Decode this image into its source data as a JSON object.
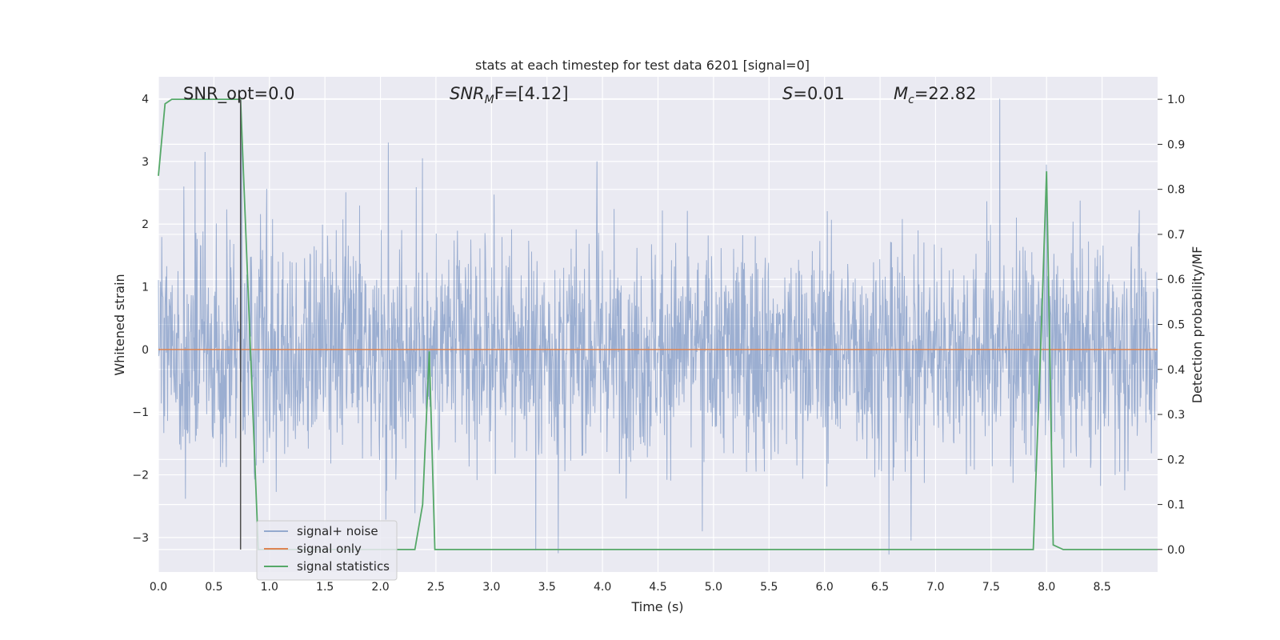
{
  "chart_data": {
    "type": "line",
    "title": "stats at each timestep for test data 6201 [signal=0]",
    "xlabel": "Time (s)",
    "ylabel_left": "Whitened strain",
    "ylabel_right": "Detection probability/MF",
    "xlim": [
      0,
      9.0
    ],
    "ylim_left": [
      -3.55,
      4.35
    ],
    "ylim_right": [
      -0.05,
      1.05
    ],
    "x_ticks": [
      "0.0",
      "0.5",
      "1.0",
      "1.5",
      "2.0",
      "2.5",
      "3.0",
      "3.5",
      "4.0",
      "4.5",
      "5.0",
      "5.5",
      "6.0",
      "6.5",
      "7.0",
      "7.5",
      "8.0",
      "8.5"
    ],
    "y_ticks_left": [
      "4",
      "3",
      "2",
      "1",
      "0",
      "−1",
      "−2",
      "−3"
    ],
    "y_ticks_right": [
      "1.0",
      "0.9",
      "0.8",
      "0.7",
      "0.6",
      "0.5",
      "0.4",
      "0.3",
      "0.2",
      "0.1",
      "0.0"
    ],
    "grid": true,
    "legend_position": "lower-left",
    "annotations": {
      "snr_opt": "SNR_opt=0.0",
      "snr_mf_name": "SNR",
      "snr_mf_sub": "M",
      "snr_mf_rest": "F=[4.12]",
      "s_name": "S",
      "s_rest": "=0.01",
      "mc_name": "M",
      "mc_sub": "c",
      "mc_rest": "=22.82"
    },
    "series": [
      {
        "name": "signal+ noise",
        "color": "#4c72b0",
        "note_values": "stochastic whitened noise, approx. mean 0, std 1, peaks about +4.0 at 7.6 s and -3.3 near 6.6 s",
        "peaks": [
          {
            "x": 0.23,
            "y": 2.6
          },
          {
            "x": 0.33,
            "y": 3.0
          },
          {
            "x": 0.42,
            "y": 3.15
          },
          {
            "x": 0.75,
            "y": 3.45
          },
          {
            "x": 2.07,
            "y": 3.3
          },
          {
            "x": 2.38,
            "y": 3.05
          },
          {
            "x": 3.95,
            "y": 3.0
          },
          {
            "x": 7.58,
            "y": 4.0
          },
          {
            "x": 8.0,
            "y": 2.95
          },
          {
            "x": 3.4,
            "y": -3.2
          },
          {
            "x": 3.6,
            "y": -3.25
          },
          {
            "x": 6.58,
            "y": -3.27
          },
          {
            "x": 6.78,
            "y": -3.05
          },
          {
            "x": 4.9,
            "y": -2.9
          }
        ]
      },
      {
        "name": "signal only",
        "color": "#dd8452",
        "x": [
          0,
          9.0
        ],
        "y": [
          0,
          0
        ]
      },
      {
        "name": "signal statistics",
        "color": "#55a868",
        "axis": "right",
        "x": [
          0.0,
          0.06,
          0.12,
          0.7,
          0.74,
          0.9,
          2.31,
          2.38,
          2.44,
          2.49,
          6.68,
          7.88,
          7.95,
          8.0,
          8.06,
          8.15,
          8.45,
          9.0
        ],
        "y": [
          0.83,
          0.99,
          1.0,
          1.0,
          1.0,
          0.0,
          0.0,
          0.1,
          0.44,
          0.0,
          0.0,
          0.0,
          0.47,
          0.84,
          0.01,
          0.0,
          0.0,
          0.0
        ]
      }
    ],
    "marker_line": {
      "x": 0.74,
      "y_top": 0.999,
      "y_bottom": 0.0,
      "color": "#4d4d4d"
    }
  }
}
